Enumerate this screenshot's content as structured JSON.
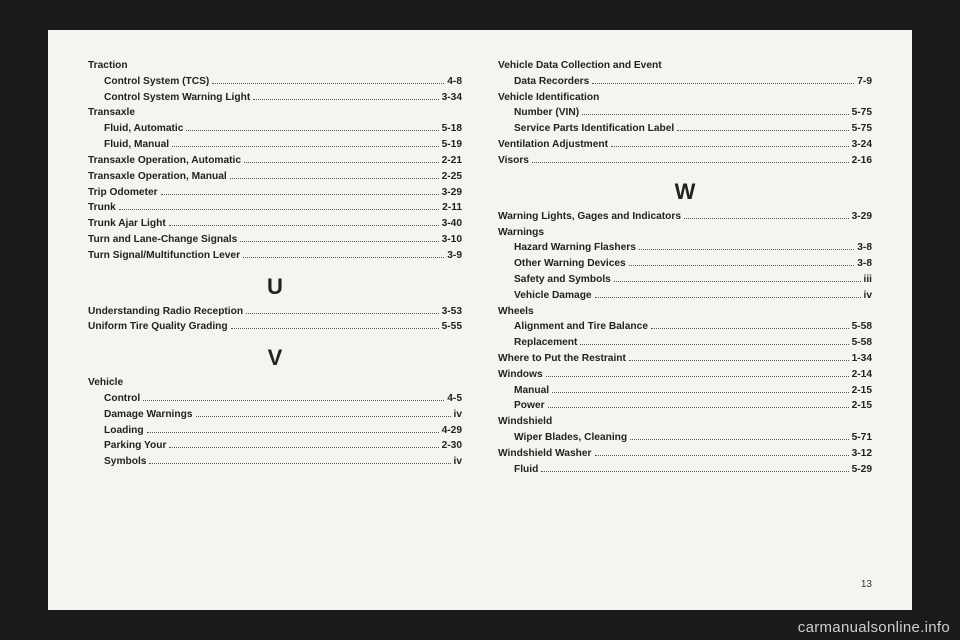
{
  "pageNumber": "13",
  "watermark": "carmanualsonline.info",
  "left": {
    "sections": [
      {
        "letter": null,
        "entries": [
          {
            "label": "Traction",
            "page": null,
            "sub": false
          },
          {
            "label": "Control System (TCS)",
            "page": "4-8",
            "sub": true
          },
          {
            "label": "Control System Warning Light",
            "page": "3-34",
            "sub": true
          },
          {
            "label": "Transaxle",
            "page": null,
            "sub": false
          },
          {
            "label": "Fluid, Automatic",
            "page": "5-18",
            "sub": true
          },
          {
            "label": "Fluid, Manual",
            "page": "5-19",
            "sub": true
          },
          {
            "label": "Transaxle Operation, Automatic",
            "page": "2-21",
            "sub": false
          },
          {
            "label": "Transaxle Operation, Manual",
            "page": "2-25",
            "sub": false
          },
          {
            "label": "Trip Odometer",
            "page": "3-29",
            "sub": false
          },
          {
            "label": "Trunk",
            "page": "2-11",
            "sub": false
          },
          {
            "label": "Trunk Ajar Light",
            "page": "3-40",
            "sub": false
          },
          {
            "label": "Turn and Lane-Change Signals",
            "page": "3-10",
            "sub": false
          },
          {
            "label": "Turn Signal/Multifunction Lever",
            "page": "3-9",
            "sub": false
          }
        ]
      },
      {
        "letter": "U",
        "entries": [
          {
            "label": "Understanding Radio Reception",
            "page": "3-53",
            "sub": false
          },
          {
            "label": "Uniform Tire Quality Grading",
            "page": "5-55",
            "sub": false
          }
        ]
      },
      {
        "letter": "V",
        "entries": [
          {
            "label": "Vehicle",
            "page": null,
            "sub": false
          },
          {
            "label": "Control",
            "page": "4-5",
            "sub": true
          },
          {
            "label": "Damage Warnings",
            "page": "iv",
            "sub": true
          },
          {
            "label": "Loading",
            "page": "4-29",
            "sub": true
          },
          {
            "label": "Parking Your",
            "page": "2-30",
            "sub": true
          },
          {
            "label": "Symbols",
            "page": "iv",
            "sub": true
          }
        ]
      }
    ]
  },
  "right": {
    "sections": [
      {
        "letter": null,
        "entries": [
          {
            "label": "Vehicle Data Collection and Event",
            "page": null,
            "sub": false
          },
          {
            "label": "Data Recorders",
            "page": "7-9",
            "sub": true
          },
          {
            "label": "Vehicle Identification",
            "page": null,
            "sub": false
          },
          {
            "label": "Number (VIN)",
            "page": "5-75",
            "sub": true
          },
          {
            "label": "Service Parts Identification Label",
            "page": "5-75",
            "sub": true
          },
          {
            "label": "Ventilation Adjustment",
            "page": "3-24",
            "sub": false
          },
          {
            "label": "Visors",
            "page": "2-16",
            "sub": false
          }
        ]
      },
      {
        "letter": "W",
        "entries": [
          {
            "label": "Warning Lights, Gages and Indicators",
            "page": "3-29",
            "sub": false
          },
          {
            "label": "Warnings",
            "page": null,
            "sub": false
          },
          {
            "label": "Hazard Warning Flashers",
            "page": "3-8",
            "sub": true
          },
          {
            "label": "Other Warning Devices",
            "page": "3-8",
            "sub": true
          },
          {
            "label": "Safety and Symbols",
            "page": "iii",
            "sub": true
          },
          {
            "label": "Vehicle Damage",
            "page": "iv",
            "sub": true
          },
          {
            "label": "Wheels",
            "page": null,
            "sub": false
          },
          {
            "label": "Alignment and Tire Balance",
            "page": "5-58",
            "sub": true
          },
          {
            "label": "Replacement",
            "page": "5-58",
            "sub": true
          },
          {
            "label": "Where to Put the Restraint",
            "page": "1-34",
            "sub": false
          },
          {
            "label": "Windows",
            "page": "2-14",
            "sub": false
          },
          {
            "label": "Manual",
            "page": "2-15",
            "sub": true
          },
          {
            "label": "Power",
            "page": "2-15",
            "sub": true
          },
          {
            "label": "Windshield",
            "page": null,
            "sub": false
          },
          {
            "label": "Wiper Blades, Cleaning",
            "page": "5-71",
            "sub": true
          },
          {
            "label": "Windshield Washer",
            "page": "3-12",
            "sub": false
          },
          {
            "label": "Fluid",
            "page": "5-29",
            "sub": true
          }
        ]
      }
    ]
  }
}
